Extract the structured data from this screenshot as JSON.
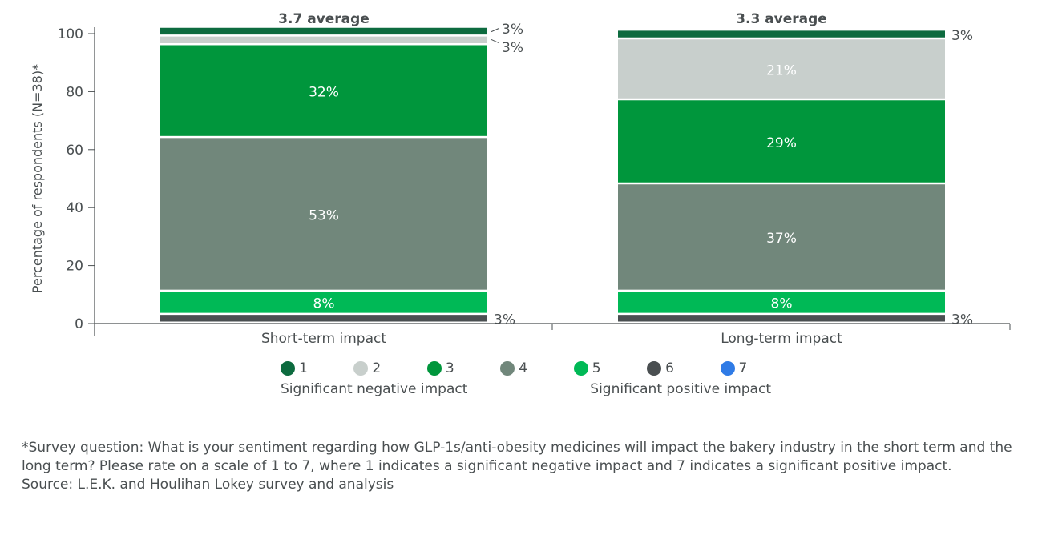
{
  "chart_data": {
    "type": "bar",
    "stacked": true,
    "ylabel": "Percentage of respondents (N=38)*",
    "ylim": [
      0,
      100
    ],
    "yticks": [
      0,
      20,
      40,
      60,
      80,
      100
    ],
    "categories": [
      "Short-term impact",
      "Long-term impact"
    ],
    "averages": [
      "3.7 average",
      "3.3 average"
    ],
    "series": [
      {
        "name": "6",
        "color": "#4a4f51",
        "values": [
          3,
          3
        ]
      },
      {
        "name": "5",
        "color": "#00b956",
        "values": [
          8,
          8
        ]
      },
      {
        "name": "4",
        "color": "#71877b",
        "values": [
          53,
          37
        ]
      },
      {
        "name": "3",
        "color": "#00963c",
        "values": [
          32,
          29
        ]
      },
      {
        "name": "2",
        "color": "#c8cfcc",
        "values": [
          3,
          21
        ]
      },
      {
        "name": "1",
        "color": "#0d6b3f",
        "values": [
          3,
          3
        ]
      }
    ],
    "legend": {
      "items": [
        {
          "label": "1",
          "color": "#0d6b3f"
        },
        {
          "label": "2",
          "color": "#c8cfcc"
        },
        {
          "label": "3",
          "color": "#00963c"
        },
        {
          "label": "4",
          "color": "#71877b"
        },
        {
          "label": "5",
          "color": "#00b956"
        },
        {
          "label": "6",
          "color": "#4a4f51"
        },
        {
          "label": "7",
          "color": "#2f7be6"
        }
      ],
      "low_label": "Significant negative impact",
      "high_label": "Significant positive impact",
      "placement": "bottom"
    },
    "grid": false
  },
  "footnote": "*Survey question: What is your sentiment regarding how GLP-1s/anti-obesity medicines will impact the bakery industry in the short term and the long term? Please rate on a scale of 1 to 7, where 1 indicates a significant negative impact and 7 indicates a significant positive impact.",
  "source": "Source: L.E.K. and Houlihan Lokey survey and analysis"
}
